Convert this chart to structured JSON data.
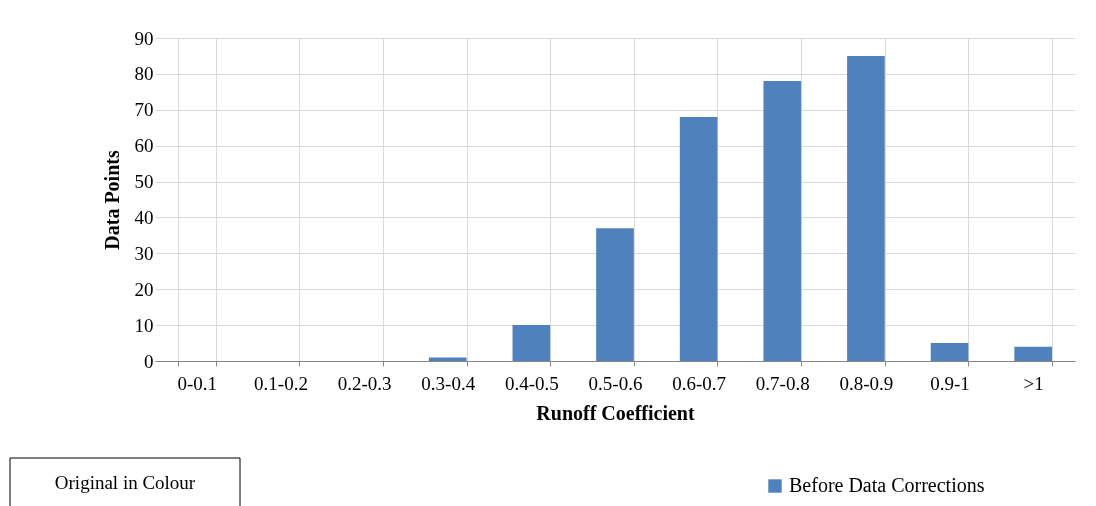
{
  "chart_data": {
    "type": "bar",
    "xlabel": "Runoff Coefficient",
    "ylabel": "Data Points",
    "categories": [
      "0-0.1",
      "0.1-0.2",
      "0.2-0.3",
      "0.3-0.4",
      "0.4-0.5",
      "0.5-0.6",
      "0.6-0.7",
      "0.7-0.8",
      "0.8-0.9",
      "0.9-1",
      ">1"
    ],
    "series": [
      {
        "name": "Before Data Corrections",
        "color": "#4f81bd",
        "values": [
          0,
          0,
          0,
          1,
          10,
          37,
          68,
          78,
          85,
          5,
          4
        ]
      }
    ],
    "ylim": [
      0,
      90
    ],
    "yticks": [
      0,
      10,
      20,
      30,
      40,
      50,
      60,
      70,
      80,
      90
    ],
    "grid": true,
    "legend": "bottom right",
    "annotations": [
      "Original in Colour"
    ]
  }
}
